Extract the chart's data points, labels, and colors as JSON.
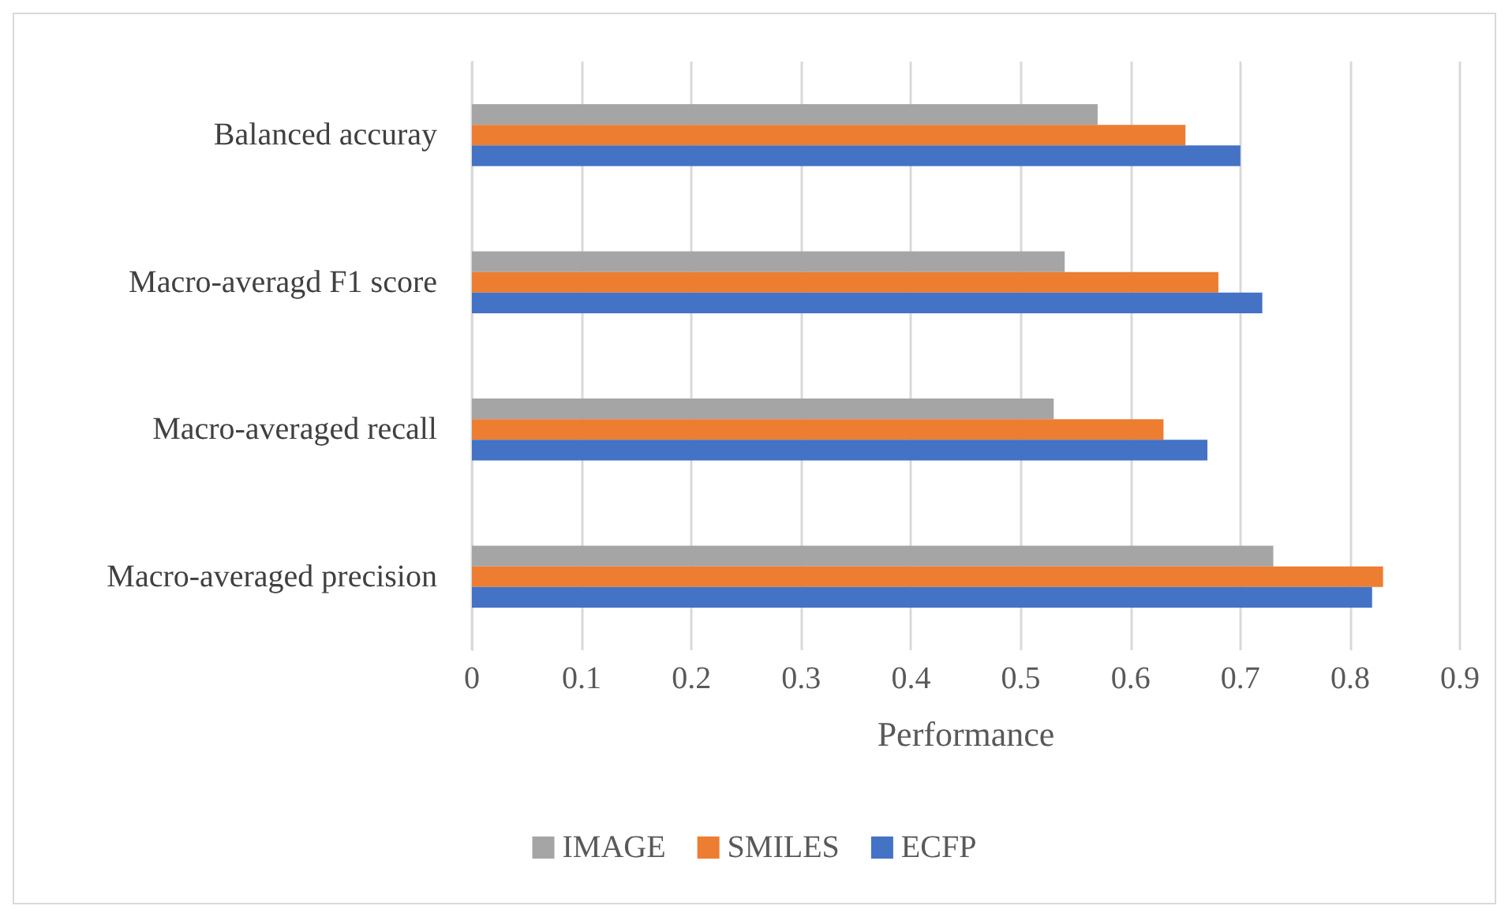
{
  "chart_data": {
    "type": "bar",
    "orientation": "horizontal",
    "xlabel": "Performance",
    "categories": [
      "Balanced accuray",
      "Macro-averagd F1 score",
      "Macro-averaged recall",
      "Macro-averaged precision"
    ],
    "series": [
      {
        "name": "IMAGE",
        "color": "#a5a5a5",
        "values": [
          0.57,
          0.54,
          0.53,
          0.73
        ]
      },
      {
        "name": "SMILES",
        "color": "#ed7d31",
        "values": [
          0.65,
          0.68,
          0.63,
          0.83
        ]
      },
      {
        "name": "ECFP",
        "color": "#4472c4",
        "values": [
          0.7,
          0.72,
          0.67,
          0.82
        ]
      }
    ],
    "xlim": [
      0,
      0.9
    ],
    "xticks": [
      0,
      0.1,
      0.2,
      0.3,
      0.4,
      0.5,
      0.6,
      0.7,
      0.8,
      0.9
    ],
    "grid": "x",
    "legend": "bottom"
  }
}
